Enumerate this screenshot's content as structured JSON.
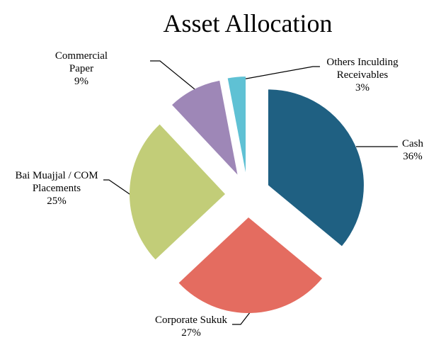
{
  "chart_data": {
    "type": "pie",
    "title": "Asset Allocation",
    "categories": [
      "Cash",
      "Corporate Sukuk",
      "Bai Muajjal / COM Placements",
      "Commercial Paper",
      "Others Inculding Receivables"
    ],
    "values": [
      36,
      27,
      25,
      9,
      3
    ],
    "value_labels": [
      "36%",
      "27%",
      "25%",
      "9%",
      "3%"
    ],
    "colors": [
      "#1f6082",
      "#e46c60",
      "#c2cd78",
      "#9e87b7",
      "#5fc1d4"
    ]
  }
}
